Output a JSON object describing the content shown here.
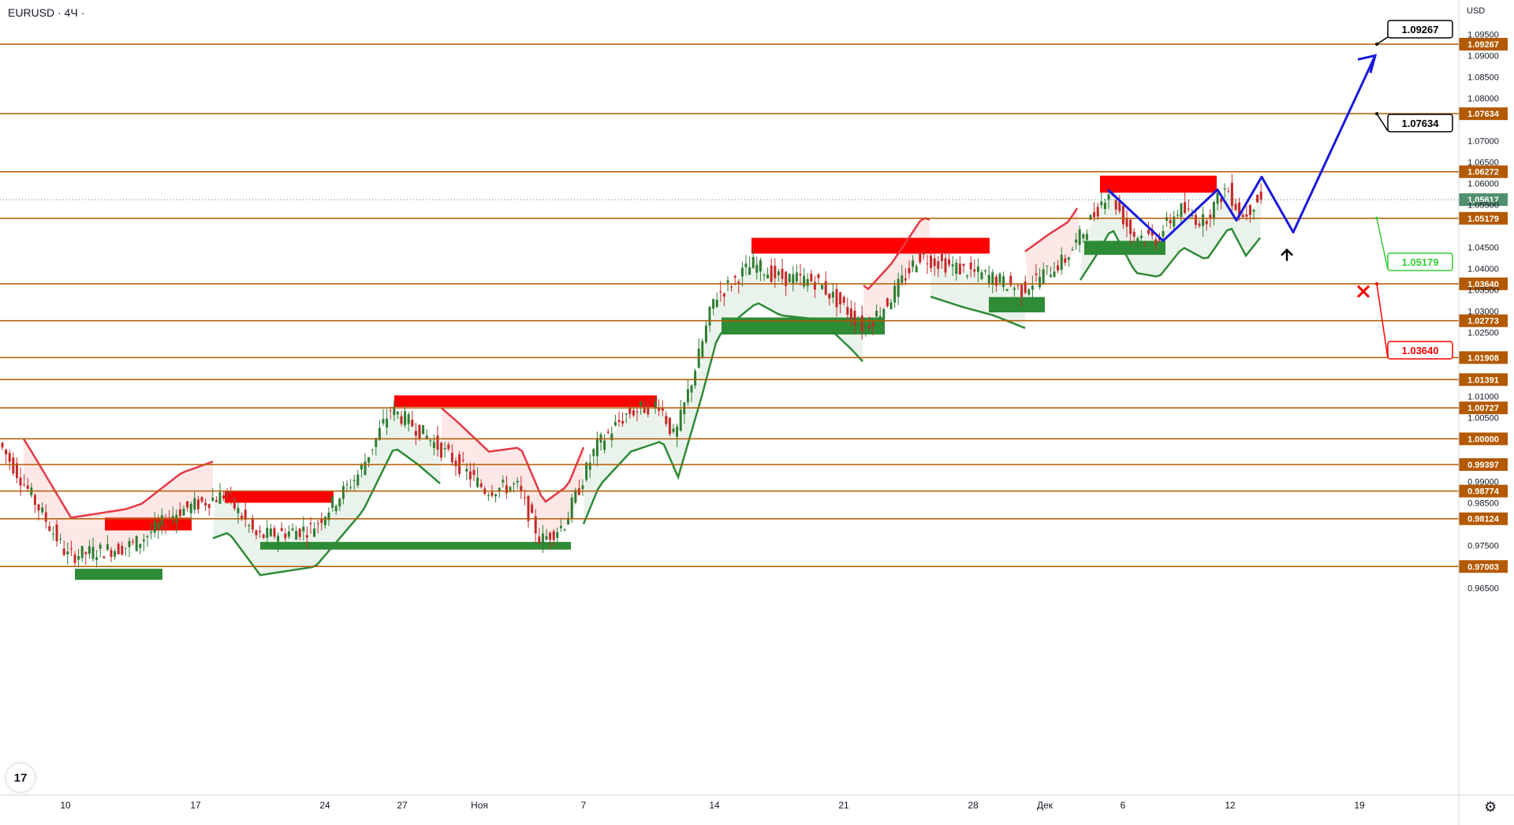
{
  "header": {
    "symbol": "EURUSD · 4Ч ·",
    "currency": "USD"
  },
  "chart_data": {
    "type": "candlestick",
    "symbol": "EURUSD",
    "timeframe": "4Ч",
    "ylim": [
      0.9625,
      1.0975
    ],
    "y_ticks": [
      "1.09500",
      "1.09000",
      "1.08500",
      "1.08000",
      "1.07000",
      "1.06500",
      "1.06000",
      "1.05500",
      "1.04500",
      "1.04000",
      "1.03500",
      "1.03000",
      "1.02500",
      "1.01000",
      "1.00500",
      "0.99000",
      "0.98500",
      "0.97500",
      "0.96500"
    ],
    "x_ticks": [
      "10",
      "17",
      "24",
      "27",
      "Ноя",
      "7",
      "14",
      "21",
      "28",
      "Дек",
      "6",
      "12",
      "19"
    ],
    "levels": [
      "1.09267",
      "1.07634",
      "1.06272",
      "1.05179",
      "1.03640",
      "1.02773",
      "1.01908",
      "1.01391",
      "1.00727",
      "1.00000",
      "0.99397",
      "0.98774",
      "0.98124",
      "0.97003"
    ],
    "current_price": "1.05617",
    "annotations": [
      {
        "text": "1.09267",
        "type": "target"
      },
      {
        "text": "1.07634",
        "type": "target"
      },
      {
        "text": "1.05179",
        "type": "entry"
      },
      {
        "text": "1.03640",
        "type": "stop"
      }
    ],
    "path": [
      1.0585,
      1.0465,
      1.0585,
      1.0513,
      1.0615,
      1.0485,
      1.09
    ],
    "red_zones": [
      {
        "from": 0.9785,
        "to": 0.9815
      },
      {
        "from": 0.985,
        "to": 0.9878
      },
      {
        "from": 1.0075,
        "to": 1.0102
      },
      {
        "from": 1.0435,
        "to": 1.0472
      },
      {
        "from": 1.0578,
        "to": 1.0618
      }
    ],
    "green_zones": [
      {
        "from": 0.9669,
        "to": 0.9695
      },
      {
        "from": 0.974,
        "to": 0.9758
      },
      {
        "from": 1.0245,
        "to": 1.0285
      },
      {
        "from": 1.0297,
        "to": 1.0333
      },
      {
        "from": 1.0432,
        "to": 1.0465
      }
    ],
    "colors": {
      "level": "#b35900",
      "path": "#1a1adb",
      "red_zone": "#ff0000",
      "green_zone": "#2e8b36",
      "bull": "#2e7d32",
      "bear": "#c62828",
      "current": "#4f8f6e",
      "entry": "#33cc33",
      "stop": "#ff0000"
    }
  }
}
